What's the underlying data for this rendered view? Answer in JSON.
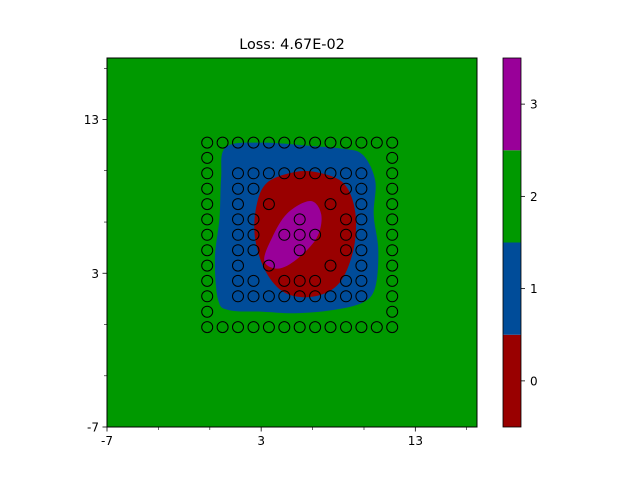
{
  "chart_data": {
    "type": "contour",
    "title": "Loss: 4.67E-02",
    "xlabel": "",
    "ylabel": "",
    "xlim": [
      -7,
      17
    ],
    "ylim": [
      -7,
      17
    ],
    "x_ticks": [
      -7,
      3,
      13
    ],
    "y_ticks": [
      -7,
      3,
      13
    ],
    "x_minor_ticks": [
      -3.67,
      -0.33,
      6.33,
      9.67,
      16.33
    ],
    "y_minor_ticks": [
      -3.67,
      -0.33,
      6.33,
      9.67,
      16.33
    ],
    "background_class": 2,
    "regions": [
      {
        "class": 1,
        "color": "#004c99",
        "outline": [
          [
            0.7,
            11.2
          ],
          [
            3,
            11.5
          ],
          [
            6,
            11.3
          ],
          [
            8.3,
            11.1
          ],
          [
            9.6,
            10.7
          ],
          [
            10.4,
            9
          ],
          [
            10.3,
            6.8
          ],
          [
            10.6,
            4.5
          ],
          [
            10.4,
            2.1
          ],
          [
            9.6,
            1.1
          ],
          [
            7.6,
            0.6
          ],
          [
            5.2,
            0.4
          ],
          [
            3.1,
            0.5
          ],
          [
            0.9,
            0.6
          ],
          [
            0.2,
            1.3
          ],
          [
            0,
            4
          ],
          [
            0.3,
            6.6
          ],
          [
            0.4,
            9.2
          ]
        ]
      },
      {
        "class": 0,
        "color": "#990000",
        "outline": [
          [
            3.4,
            8.9
          ],
          [
            5.3,
            9.6
          ],
          [
            6.9,
            9.5
          ],
          [
            8.4,
            8.8
          ],
          [
            9.1,
            7
          ],
          [
            9,
            4.6
          ],
          [
            8.1,
            2.4
          ],
          [
            6.5,
            1.5
          ],
          [
            4.6,
            1.7
          ],
          [
            3.3,
            3.1
          ],
          [
            2.6,
            5.3
          ],
          [
            2.7,
            7.4
          ]
        ]
      },
      {
        "class": 3,
        "color": "#990099",
        "outline": [
          [
            6.2,
            7.7
          ],
          [
            6.9,
            6.8
          ],
          [
            6.6,
            5.3
          ],
          [
            5.3,
            3.9
          ],
          [
            4.1,
            3.3
          ],
          [
            3.2,
            3.8
          ],
          [
            3.7,
            5.3
          ],
          [
            4.7,
            6.9
          ]
        ]
      }
    ],
    "points": [
      [
        -0.5,
        11.5
      ],
      [
        0.5,
        11.5
      ],
      [
        1.5,
        11.5
      ],
      [
        2.5,
        11.5
      ],
      [
        3.5,
        11.5
      ],
      [
        4.5,
        11.5
      ],
      [
        5.5,
        11.5
      ],
      [
        6.5,
        11.5
      ],
      [
        7.5,
        11.5
      ],
      [
        8.5,
        11.5
      ],
      [
        9.5,
        11.5
      ],
      [
        10.5,
        11.5
      ],
      [
        11.5,
        11.5
      ],
      [
        -0.5,
        10.5
      ],
      [
        11.5,
        10.5
      ],
      [
        -0.5,
        9.5
      ],
      [
        1.5,
        9.5
      ],
      [
        2.5,
        9.5
      ],
      [
        3.5,
        9.5
      ],
      [
        4.5,
        9.5
      ],
      [
        5.5,
        9.5
      ],
      [
        6.5,
        9.5
      ],
      [
        7.5,
        9.5
      ],
      [
        8.5,
        9.5
      ],
      [
        9.5,
        9.5
      ],
      [
        11.5,
        9.5
      ],
      [
        -0.5,
        8.5
      ],
      [
        1.5,
        8.5
      ],
      [
        2.5,
        8.5
      ],
      [
        8.5,
        8.5
      ],
      [
        9.5,
        8.5
      ],
      [
        11.5,
        8.5
      ],
      [
        -0.5,
        7.5
      ],
      [
        1.5,
        7.5
      ],
      [
        3.5,
        7.5
      ],
      [
        7.5,
        7.5
      ],
      [
        9.5,
        7.5
      ],
      [
        11.5,
        7.5
      ],
      [
        -0.5,
        6.5
      ],
      [
        1.5,
        6.5
      ],
      [
        2.5,
        6.5
      ],
      [
        5.5,
        6.5
      ],
      [
        8.5,
        6.5
      ],
      [
        9.5,
        6.5
      ],
      [
        11.5,
        6.5
      ],
      [
        -0.5,
        5.5
      ],
      [
        1.5,
        5.5
      ],
      [
        2.5,
        5.5
      ],
      [
        4.5,
        5.5
      ],
      [
        5.5,
        5.5
      ],
      [
        6.5,
        5.5
      ],
      [
        8.5,
        5.5
      ],
      [
        9.5,
        5.5
      ],
      [
        11.5,
        5.5
      ],
      [
        -0.5,
        4.5
      ],
      [
        1.5,
        4.5
      ],
      [
        2.5,
        4.5
      ],
      [
        5.5,
        4.5
      ],
      [
        8.5,
        4.5
      ],
      [
        9.5,
        4.5
      ],
      [
        11.5,
        4.5
      ],
      [
        -0.5,
        3.5
      ],
      [
        1.5,
        3.5
      ],
      [
        3.5,
        3.5
      ],
      [
        7.5,
        3.5
      ],
      [
        9.5,
        3.5
      ],
      [
        11.5,
        3.5
      ],
      [
        -0.5,
        2.5
      ],
      [
        1.5,
        2.5
      ],
      [
        2.5,
        2.5
      ],
      [
        4.5,
        2.5
      ],
      [
        5.5,
        2.5
      ],
      [
        6.5,
        2.5
      ],
      [
        8.5,
        2.5
      ],
      [
        9.5,
        2.5
      ],
      [
        11.5,
        2.5
      ],
      [
        -0.5,
        1.5
      ],
      [
        1.5,
        1.5
      ],
      [
        2.5,
        1.5
      ],
      [
        3.5,
        1.5
      ],
      [
        4.5,
        1.5
      ],
      [
        5.5,
        1.5
      ],
      [
        6.5,
        1.5
      ],
      [
        7.5,
        1.5
      ],
      [
        8.5,
        1.5
      ],
      [
        9.5,
        1.5
      ],
      [
        11.5,
        1.5
      ],
      [
        -0.5,
        0.5
      ],
      [
        11.5,
        0.5
      ],
      [
        -0.5,
        -0.5
      ],
      [
        0.5,
        -0.5
      ],
      [
        1.5,
        -0.5
      ],
      [
        2.5,
        -0.5
      ],
      [
        3.5,
        -0.5
      ],
      [
        4.5,
        -0.5
      ],
      [
        5.5,
        -0.5
      ],
      [
        6.5,
        -0.5
      ],
      [
        7.5,
        -0.5
      ],
      [
        8.5,
        -0.5
      ],
      [
        9.5,
        -0.5
      ],
      [
        10.5,
        -0.5
      ],
      [
        11.5,
        -0.5
      ]
    ],
    "colorbar": {
      "ticks": [
        0,
        1,
        2,
        3
      ],
      "tick_labels": [
        "0",
        "1",
        "2",
        "3"
      ],
      "range": [
        -0.5,
        3.5
      ],
      "levels": [
        {
          "value": 0,
          "color": "#990000"
        },
        {
          "value": 1,
          "color": "#004c99"
        },
        {
          "value": 2,
          "color": "#009900"
        },
        {
          "value": 3,
          "color": "#990099"
        }
      ]
    },
    "grid": false,
    "legend": "none"
  }
}
